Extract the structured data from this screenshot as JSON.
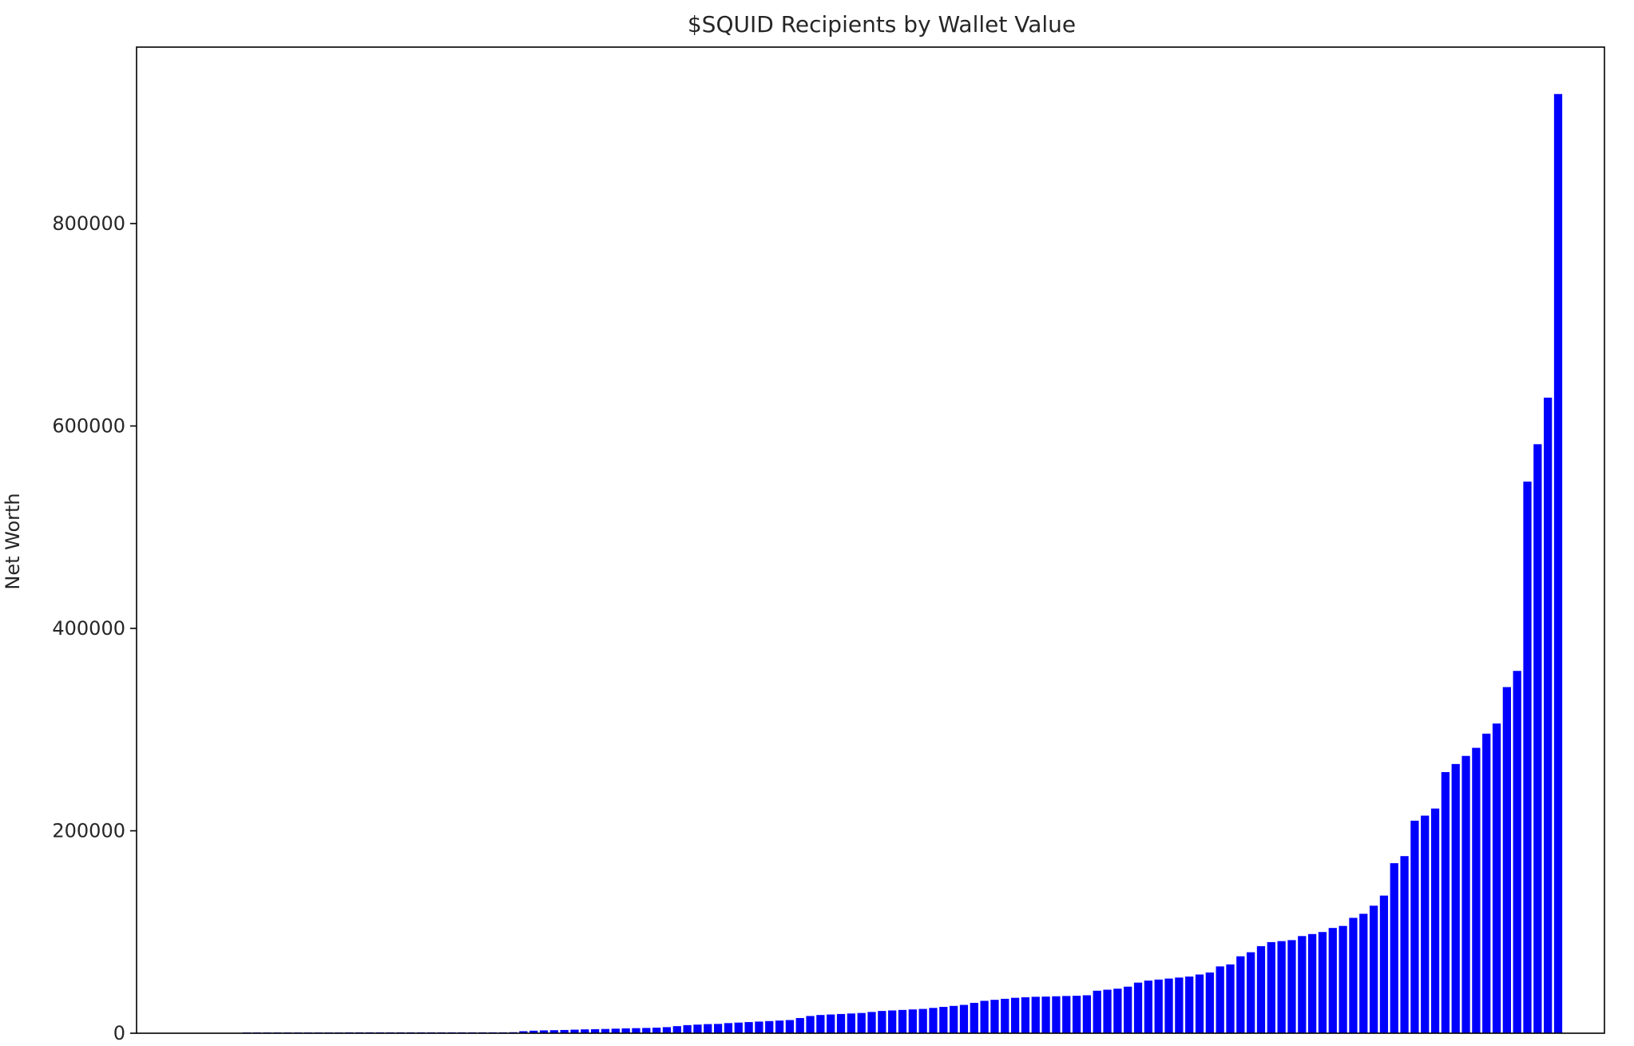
{
  "chart_data": {
    "type": "bar",
    "title": "$SQUID Recipients by Wallet Value",
    "xlabel": "",
    "ylabel": "Net Worth",
    "ylim": [
      0,
      975000
    ],
    "yticks": [
      0,
      200000,
      400000,
      600000,
      800000
    ],
    "ytick_labels": [
      "0",
      "200000",
      "400000",
      "600000",
      "800000"
    ],
    "xticks_shown": false,
    "grid": false,
    "legend": "none",
    "bar_color": "#0000ff",
    "values": [
      800,
      800,
      800,
      800,
      800,
      800,
      800,
      800,
      800,
      800,
      900,
      900,
      900,
      900,
      900,
      900,
      900,
      900,
      900,
      900,
      900,
      900,
      900,
      900,
      900,
      900,
      1000,
      2000,
      2500,
      2800,
      3000,
      3200,
      3500,
      3800,
      4000,
      4200,
      4500,
      4800,
      5000,
      5200,
      5500,
      6000,
      7000,
      8000,
      8500,
      9000,
      9200,
      10000,
      10500,
      11000,
      11500,
      12000,
      12500,
      13000,
      15000,
      17000,
      18000,
      18500,
      19000,
      19500,
      20000,
      21000,
      22000,
      22500,
      23000,
      23500,
      24000,
      25000,
      26000,
      27000,
      28000,
      30000,
      32000,
      33000,
      34000,
      35000,
      35500,
      36000,
      36200,
      36500,
      36800,
      37000,
      37500,
      42000,
      43000,
      44000,
      46000,
      50000,
      52000,
      53000,
      54000,
      55000,
      56000,
      58000,
      60000,
      66000,
      68000,
      76000,
      80000,
      86000,
      90000,
      91000,
      92000,
      96000,
      98000,
      100000,
      104000,
      106000,
      114000,
      118000,
      126000,
      136000,
      168000,
      175000,
      210000,
      215000,
      222000,
      258000,
      266000,
      274000,
      282000,
      296000,
      306000,
      342000,
      358000,
      545000,
      582000,
      628000,
      928000
    ]
  }
}
